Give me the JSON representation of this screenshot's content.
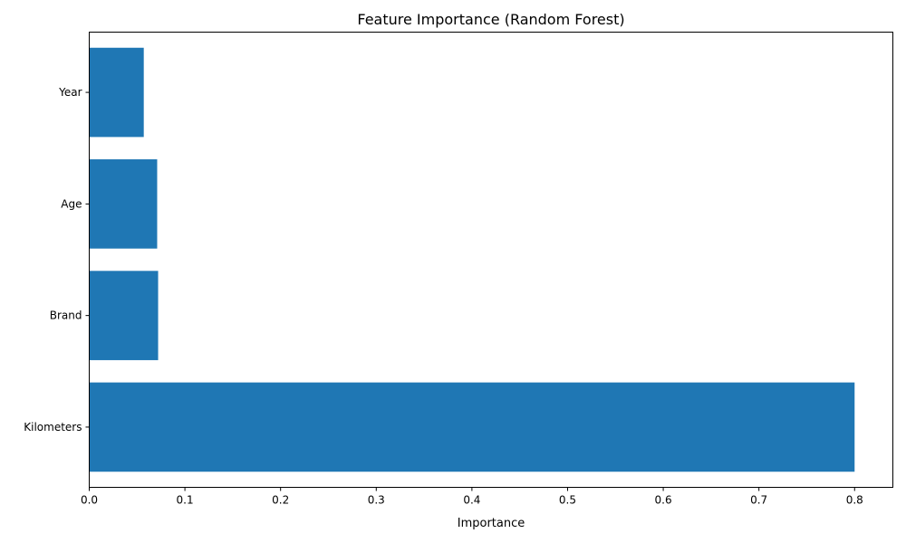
{
  "chart_data": {
    "type": "bar",
    "orientation": "horizontal",
    "title": "Feature Importance (Random Forest)",
    "xlabel": "Importance",
    "ylabel": "",
    "categories": [
      "Kilometers",
      "Brand",
      "Age",
      "Year"
    ],
    "values": [
      0.8,
      0.072,
      0.071,
      0.057
    ],
    "xlim": [
      0,
      0.84
    ],
    "xticks": [
      0.0,
      0.1,
      0.2,
      0.3,
      0.4,
      0.5,
      0.6,
      0.7,
      0.8
    ],
    "xtick_labels": [
      "0.0",
      "0.1",
      "0.2",
      "0.3",
      "0.4",
      "0.5",
      "0.6",
      "0.7",
      "0.8"
    ],
    "grid": false,
    "bar_color": "#1f77b4"
  }
}
